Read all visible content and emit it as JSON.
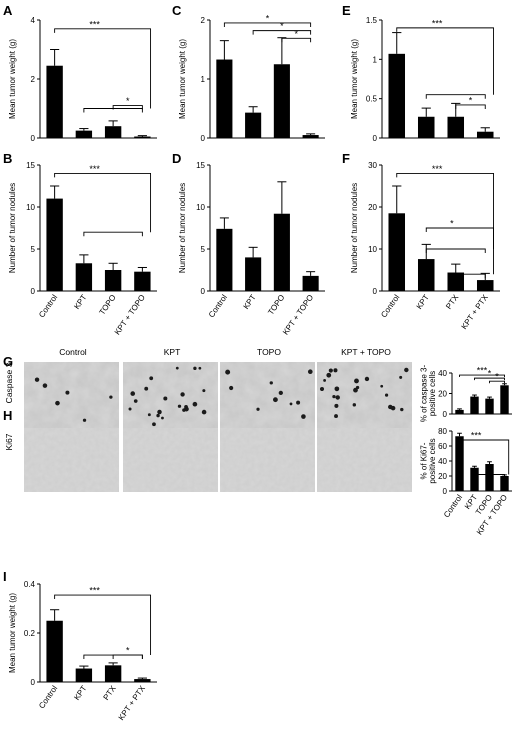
{
  "panels": [
    {
      "id": "A",
      "label": "A",
      "ylabel": "Mean tumor weight (g)",
      "categories": [
        "Control",
        "KPT",
        "TOPO",
        "KPT + TOPO"
      ],
      "showCats": false,
      "ylim": [
        0,
        4
      ],
      "ticks": [
        0,
        2,
        4
      ],
      "values": [
        2.45,
        0.25,
        0.4,
        0.05
      ],
      "errors": [
        0.55,
        0.07,
        0.18,
        0.03
      ],
      "sig": [
        {
          "type": "group",
          "from": 0,
          "to": [
            1,
            2,
            3
          ],
          "label": "***",
          "y": 3.7,
          "drop": 1.0
        },
        {
          "type": "pair",
          "from": 2,
          "to": 3,
          "label": "*",
          "y": 1.1
        }
      ]
    },
    {
      "id": "C",
      "label": "C",
      "ylabel": "Mean tumor weight (g)",
      "categories": [
        "Control",
        "KPT",
        "TOPO",
        "KPT + TOPO"
      ],
      "showCats": false,
      "ylim": [
        0,
        2
      ],
      "ticks": [
        0,
        1,
        2
      ],
      "values": [
        1.33,
        0.43,
        1.25,
        0.05
      ],
      "errors": [
        0.32,
        0.1,
        0.45,
        0.02
      ],
      "sig": [
        {
          "type": "pair",
          "from": 0,
          "to": 3,
          "label": "*",
          "y": 1.95
        },
        {
          "type": "pair",
          "from": 1,
          "to": 3,
          "label": "*",
          "y": 1.82
        },
        {
          "type": "pair",
          "from": 2,
          "to": 3,
          "label": "*",
          "y": 1.69
        }
      ]
    },
    {
      "id": "E",
      "label": "E",
      "ylabel": "Mean tumor weight (g)",
      "categories": [
        "Control",
        "KPT",
        "PTX",
        "KPT + PTX"
      ],
      "showCats": false,
      "ylim": [
        0,
        1.5
      ],
      "ticks": [
        0,
        0.5,
        1,
        1.5
      ],
      "values": [
        1.07,
        0.27,
        0.27,
        0.08
      ],
      "errors": [
        0.27,
        0.11,
        0.17,
        0.05
      ],
      "sig": [
        {
          "type": "group",
          "from": 0,
          "to": [
            1,
            2,
            3
          ],
          "label": "***",
          "y": 1.4,
          "drop": 0.55
        },
        {
          "type": "pair",
          "from": 2,
          "to": 3,
          "label": "*",
          "y": 0.42
        }
      ]
    },
    {
      "id": "B",
      "label": "B",
      "ylabel": "Number of tumor nodules",
      "categories": [
        "Control",
        "KPT",
        "TOPO",
        "KPT + TOPO"
      ],
      "showCats": true,
      "ylim": [
        0,
        15
      ],
      "ticks": [
        0,
        5,
        10,
        15
      ],
      "values": [
        11.0,
        3.3,
        2.5,
        2.3
      ],
      "errors": [
        1.5,
        1.0,
        0.8,
        0.5
      ],
      "sig": [
        {
          "type": "group",
          "from": 0,
          "to": [
            1,
            2,
            3
          ],
          "label": "***",
          "y": 14.0,
          "drop": 7.0
        }
      ]
    },
    {
      "id": "D",
      "label": "D",
      "ylabel": "Number of tumor nodules",
      "categories": [
        "Control",
        "KPT",
        "TOPO",
        "KPT + TOPO"
      ],
      "showCats": true,
      "ylim": [
        0,
        15
      ],
      "ticks": [
        0,
        5,
        10,
        15
      ],
      "values": [
        7.4,
        4.0,
        9.2,
        1.8
      ],
      "errors": [
        1.3,
        1.2,
        3.8,
        0.5
      ],
      "sig": []
    },
    {
      "id": "F",
      "label": "F",
      "ylabel": "Number of tumor nodules",
      "categories": [
        "Control",
        "KPT",
        "PTX",
        "KPT + PTX"
      ],
      "showCats": true,
      "ylim": [
        0,
        30
      ],
      "ticks": [
        0,
        10,
        20,
        30
      ],
      "values": [
        18.5,
        7.6,
        4.4,
        2.6
      ],
      "errors": [
        6.5,
        3.5,
        2.0,
        1.6
      ],
      "sig": [
        {
          "type": "group",
          "from": 0,
          "to": [
            1,
            2,
            3
          ],
          "label": "***",
          "y": 28,
          "drop": 10
        },
        {
          "type": "group",
          "from": 1,
          "to": [
            2,
            3
          ],
          "label": "*",
          "y": 15,
          "drop": 4
        }
      ]
    },
    {
      "id": "Gchart",
      "label": "",
      "ylabel": "% of caspase 3-\npositive cells",
      "categories": [
        "Control",
        "KPT",
        "TOPO",
        "KPT + TOPO"
      ],
      "showCats": false,
      "ylim": [
        0,
        40
      ],
      "ticks": [
        0,
        20,
        40
      ],
      "values": [
        4,
        17,
        15,
        28
      ],
      "errors": [
        1.0,
        1.5,
        1.5,
        1.5
      ],
      "sig": [
        {
          "type": "pair",
          "from": 0,
          "to": 3,
          "label": "***",
          "y": 38
        },
        {
          "type": "pair",
          "from": 1,
          "to": 3,
          "label": "*",
          "y": 35
        },
        {
          "type": "pair",
          "from": 2,
          "to": 3,
          "label": "*",
          "y": 32
        }
      ]
    },
    {
      "id": "Hchart",
      "label": "",
      "ylabel": "% of Ki67-\npositive cells",
      "categories": [
        "Control",
        "KPT",
        "TOPO",
        "KPT + TOPO"
      ],
      "showCats": true,
      "ylim": [
        0,
        80
      ],
      "ticks": [
        0,
        20,
        40,
        60,
        80
      ],
      "values": [
        73,
        31,
        36,
        20
      ],
      "errors": [
        4,
        2,
        3,
        1.5
      ],
      "sig": [
        {
          "type": "group",
          "from": 0,
          "to": [
            1,
            2,
            3
          ],
          "label": "***",
          "y": 68,
          "drop": 22
        }
      ]
    },
    {
      "id": "I",
      "label": "I",
      "ylabel": "Mean tumor weight (g)",
      "categories": [
        "Control",
        "KPT",
        "PTX",
        "KPT + PTX"
      ],
      "showCats": true,
      "ylim": [
        0,
        0.4
      ],
      "ticks": [
        0,
        0.2,
        0.4
      ],
      "tickLabels": [
        "0",
        "0.2",
        "0.4"
      ],
      "values": [
        0.25,
        0.055,
        0.068,
        0.012
      ],
      "errors": [
        0.045,
        0.01,
        0.01,
        0.004
      ],
      "sig": [
        {
          "type": "group",
          "from": 0,
          "to": [
            1,
            2,
            3
          ],
          "label": "***",
          "y": 0.355,
          "drop": 0.11
        },
        {
          "type": "pair",
          "from": 2,
          "to": 3,
          "label": "*",
          "y": 0.11
        }
      ]
    }
  ],
  "histology": {
    "G": {
      "label": "G",
      "row": "Caspase 3",
      "density": 0.9
    },
    "H": {
      "label": "H",
      "row": "Ki67",
      "density": 0.25
    },
    "columns": [
      "Control",
      "KPT",
      "TOPO",
      "KPT + TOPO"
    ]
  },
  "chart_data": [
    {
      "panel": "A",
      "type": "bar",
      "categories": [
        "Control",
        "KPT",
        "TOPO",
        "KPT + TOPO"
      ],
      "values": [
        2.45,
        0.25,
        0.4,
        0.05
      ],
      "ylabel": "Mean tumor weight (g)",
      "ylim": [
        0,
        4
      ]
    },
    {
      "panel": "B",
      "type": "bar",
      "categories": [
        "Control",
        "KPT",
        "TOPO",
        "KPT + TOPO"
      ],
      "values": [
        11.0,
        3.3,
        2.5,
        2.3
      ],
      "ylabel": "Number of tumor nodules",
      "ylim": [
        0,
        15
      ]
    },
    {
      "panel": "C",
      "type": "bar",
      "categories": [
        "Control",
        "KPT",
        "TOPO",
        "KPT + TOPO"
      ],
      "values": [
        1.33,
        0.43,
        1.25,
        0.05
      ],
      "ylabel": "Mean tumor weight (g)",
      "ylim": [
        0,
        2
      ]
    },
    {
      "panel": "D",
      "type": "bar",
      "categories": [
        "Control",
        "KPT",
        "TOPO",
        "KPT + TOPO"
      ],
      "values": [
        7.4,
        4.0,
        9.2,
        1.8
      ],
      "ylabel": "Number of tumor nodules",
      "ylim": [
        0,
        15
      ]
    },
    {
      "panel": "E",
      "type": "bar",
      "categories": [
        "Control",
        "KPT",
        "PTX",
        "KPT + PTX"
      ],
      "values": [
        1.07,
        0.27,
        0.27,
        0.08
      ],
      "ylabel": "Mean tumor weight (g)",
      "ylim": [
        0,
        1.5
      ]
    },
    {
      "panel": "F",
      "type": "bar",
      "categories": [
        "Control",
        "KPT",
        "PTX",
        "KPT + PTX"
      ],
      "values": [
        18.5,
        7.6,
        4.4,
        2.6
      ],
      "ylabel": "Number of tumor nodules",
      "ylim": [
        0,
        30
      ]
    },
    {
      "panel": "G",
      "type": "bar",
      "categories": [
        "Control",
        "KPT",
        "TOPO",
        "KPT + TOPO"
      ],
      "values": [
        4,
        17,
        15,
        28
      ],
      "ylabel": "% of caspase 3-positive cells",
      "ylim": [
        0,
        40
      ]
    },
    {
      "panel": "H",
      "type": "bar",
      "categories": [
        "Control",
        "KPT",
        "TOPO",
        "KPT + TOPO"
      ],
      "values": [
        73,
        31,
        36,
        20
      ],
      "ylabel": "% of Ki67-positive cells",
      "ylim": [
        0,
        80
      ]
    },
    {
      "panel": "I",
      "type": "bar",
      "categories": [
        "Control",
        "KPT",
        "PTX",
        "KPT + PTX"
      ],
      "values": [
        0.25,
        0.055,
        0.068,
        0.012
      ],
      "ylabel": "Mean tumor weight (g)",
      "ylim": [
        0,
        0.4
      ]
    }
  ]
}
